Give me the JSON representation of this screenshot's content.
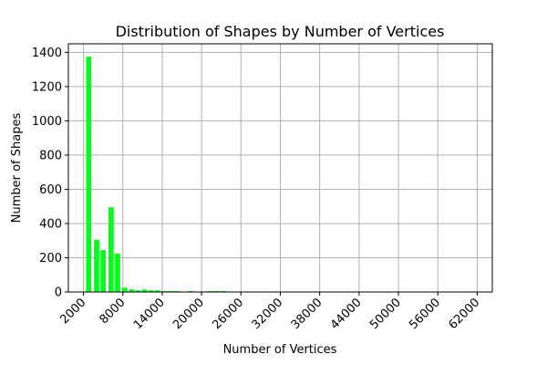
{
  "chart_data": {
    "type": "bar",
    "title": "Distribution of Shapes by Number of Vertices",
    "xlabel": "Number of Vertices",
    "ylabel": "Number of Shapes",
    "xlim": [
      -300,
      64300
    ],
    "ylim": [
      0,
      1450
    ],
    "xticks": [
      2000,
      8000,
      14000,
      20000,
      26000,
      32000,
      38000,
      44000,
      50000,
      56000,
      62000
    ],
    "yticks": [
      0,
      200,
      400,
      600,
      800,
      1000,
      1200,
      1400
    ],
    "bar_color": "#00ff1a",
    "bar_width": 800,
    "grid": true,
    "x": [
      2800,
      4000,
      5000,
      6200,
      7200,
      8300,
      9300,
      10300,
      11300,
      12300,
      13300,
      14300,
      15300,
      16300,
      18300,
      21300,
      22300,
      23300
    ],
    "values": [
      1375,
      305,
      245,
      495,
      225,
      25,
      15,
      10,
      15,
      10,
      10,
      5,
      5,
      5,
      5,
      5,
      5,
      5
    ]
  }
}
